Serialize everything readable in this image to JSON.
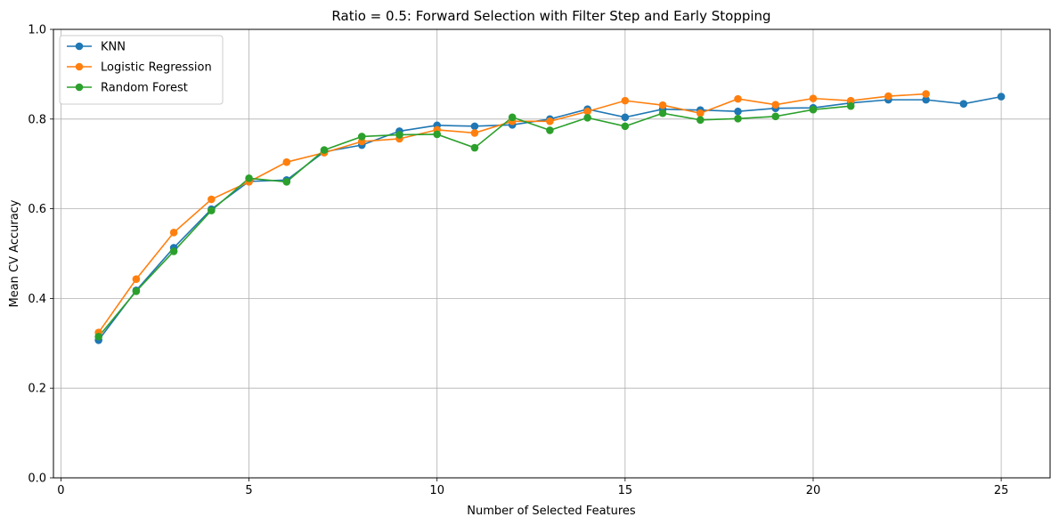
{
  "chart_data": {
    "type": "line",
    "title": "Ratio = 0.5: Forward Selection with Filter Step and Early Stopping",
    "xlabel": "Number of Selected Features",
    "ylabel": "Mean CV Accuracy",
    "xlim": [
      -0.2,
      26.3
    ],
    "ylim": [
      0.0,
      1.0
    ],
    "xticks": [
      0,
      5,
      10,
      15,
      20,
      25
    ],
    "yticks": [
      0.0,
      0.2,
      0.4,
      0.6,
      0.8,
      1.0
    ],
    "xtick_labels": [
      "0",
      "5",
      "10",
      "15",
      "20",
      "25"
    ],
    "ytick_labels": [
      "0.0",
      "0.2",
      "0.4",
      "0.6",
      "0.8",
      "1.0"
    ],
    "grid": true,
    "legend_position": "top-left",
    "series": [
      {
        "name": "KNN",
        "color": "#1f77b4",
        "x": [
          1,
          2,
          3,
          4,
          5,
          6,
          7,
          8,
          9,
          10,
          11,
          12,
          13,
          14,
          15,
          16,
          17,
          18,
          19,
          20,
          21,
          22,
          23,
          24,
          25
        ],
        "y": [
          0.307,
          0.418,
          0.513,
          0.599,
          0.661,
          0.664,
          0.727,
          0.742,
          0.773,
          0.786,
          0.784,
          0.787,
          0.8,
          0.822,
          0.804,
          0.822,
          0.82,
          0.817,
          0.824,
          0.825,
          0.836,
          0.843,
          0.843,
          0.834,
          0.85
        ]
      },
      {
        "name": "Logistic Regression",
        "color": "#ff7f0e",
        "x": [
          1,
          2,
          3,
          4,
          5,
          6,
          7,
          8,
          9,
          10,
          11,
          12,
          13,
          14,
          15,
          16,
          17,
          18,
          19,
          20,
          21,
          22,
          23
        ],
        "y": [
          0.324,
          0.443,
          0.547,
          0.621,
          0.66,
          0.704,
          0.725,
          0.75,
          0.756,
          0.776,
          0.769,
          0.795,
          0.795,
          0.817,
          0.841,
          0.831,
          0.813,
          0.845,
          0.832,
          0.846,
          0.841,
          0.851,
          0.856
        ]
      },
      {
        "name": "Random Forest",
        "color": "#2ca02c",
        "x": [
          1,
          2,
          3,
          4,
          5,
          6,
          7,
          8,
          9,
          10,
          11,
          12,
          13,
          14,
          15,
          16,
          17,
          18,
          19,
          20,
          21
        ],
        "y": [
          0.315,
          0.416,
          0.505,
          0.596,
          0.668,
          0.66,
          0.731,
          0.761,
          0.765,
          0.766,
          0.736,
          0.804,
          0.775,
          0.803,
          0.784,
          0.813,
          0.798,
          0.801,
          0.806,
          0.821,
          0.829
        ]
      }
    ]
  }
}
